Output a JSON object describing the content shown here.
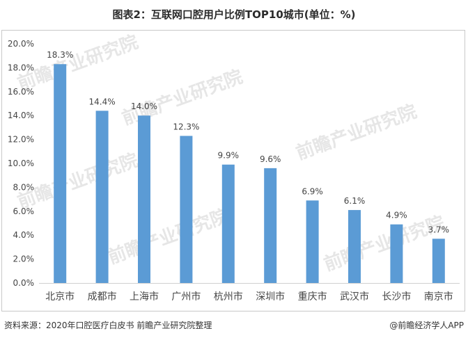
{
  "title": "图表2：互联网口腔用户比例TOP10城市(单位：%)",
  "footer": {
    "source": "资料来源：2020年口腔医疗白皮书 前瞻产业研究院整理",
    "brand": "@前瞻经济学人APP"
  },
  "watermark": "前瞻产业研究院",
  "colors": {
    "bar": "#5b9bd5",
    "axis": "#d0d0d0",
    "text": "#444444"
  },
  "chart_data": {
    "type": "bar",
    "categories": [
      "北京市",
      "成都市",
      "上海市",
      "广州市",
      "杭州市",
      "深圳市",
      "重庆市",
      "武汉市",
      "长沙市",
      "南京市"
    ],
    "values": [
      18.3,
      14.4,
      14.0,
      12.3,
      9.9,
      9.6,
      6.9,
      6.1,
      4.9,
      3.7
    ],
    "value_labels": [
      "18.3%",
      "14.4%",
      "14.0%",
      "12.3%",
      "9.9%",
      "9.6%",
      "6.9%",
      "6.1%",
      "4.9%",
      "3.7%"
    ],
    "yticks": [
      "0.0%",
      "2.0%",
      "4.0%",
      "6.0%",
      "8.0%",
      "10.0%",
      "12.0%",
      "14.0%",
      "16.0%",
      "18.0%",
      "20.0%"
    ],
    "ylim": [
      0,
      20
    ],
    "grid": false,
    "legend": "none"
  }
}
